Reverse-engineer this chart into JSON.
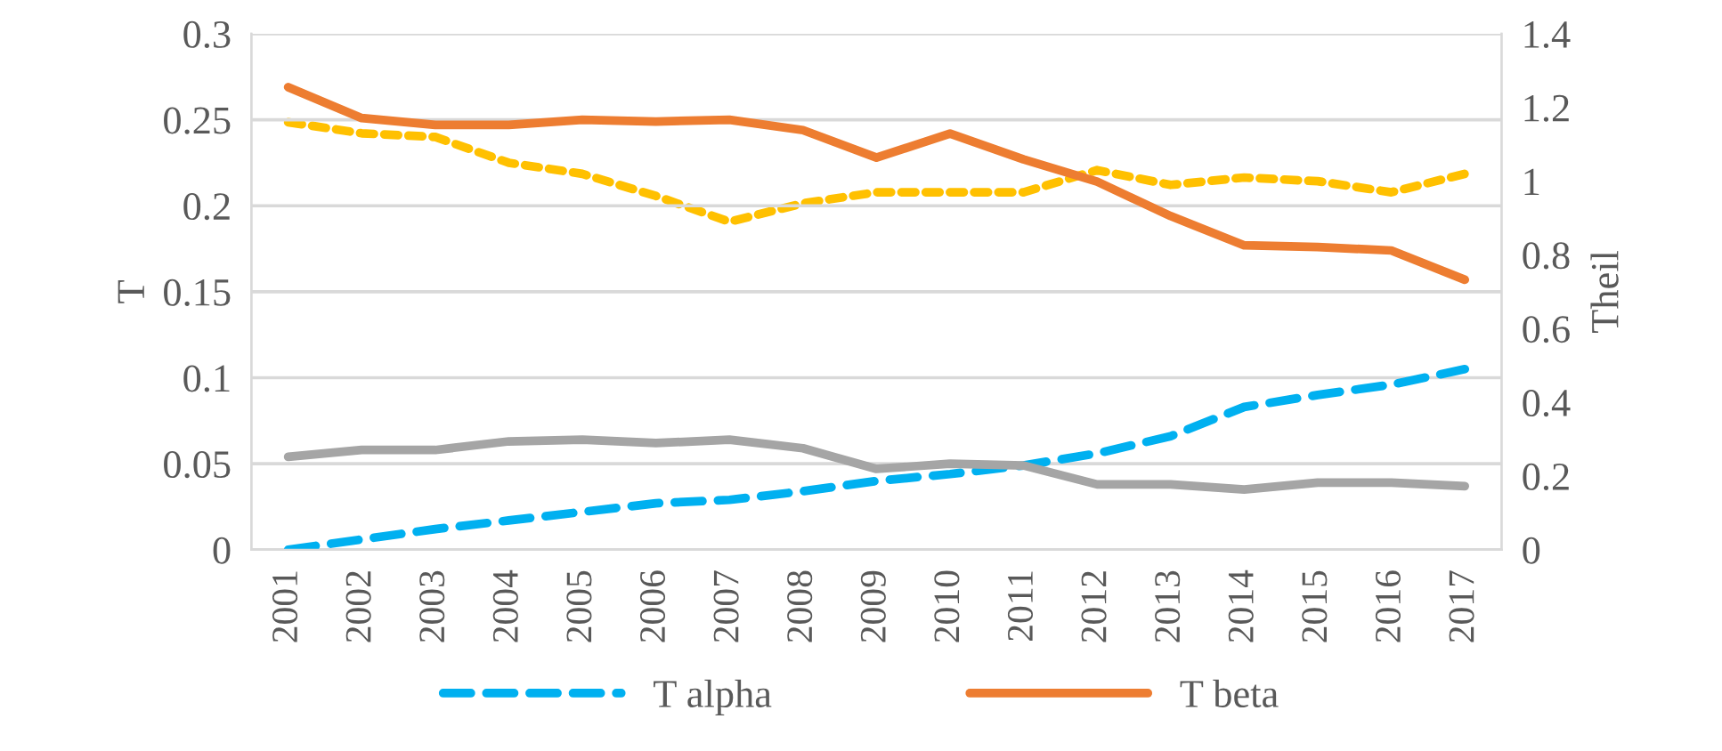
{
  "chart_data": {
    "type": "line",
    "ylabel": "T",
    "y2label": "Theil",
    "categories": [
      "2001",
      "2002",
      "2003",
      "2004",
      "2005",
      "2006",
      "2007",
      "2008",
      "2009",
      "2010",
      "2011",
      "2012",
      "2013",
      "2014",
      "2015",
      "2016",
      "2017"
    ],
    "series": [
      {
        "name": "T alpha",
        "color": "#00b0f0",
        "line_style": "dashed",
        "values": [
          0,
          0.006,
          0.012,
          0.017,
          0.022,
          0.027,
          0.029,
          0.034,
          0.04,
          0.044,
          0.049,
          0.056,
          0.066,
          0.083,
          0.09,
          0.096,
          0.105
        ]
      },
      {
        "name": "T beta",
        "color": "#ed7d31",
        "line_style": "solid",
        "values": [
          0.269,
          0.251,
          0.247,
          0.247,
          0.25,
          0.249,
          0.25,
          0.244,
          0.228,
          0.242,
          0.227,
          0.214,
          0.194,
          0.177,
          0.176,
          0.174,
          0.157
        ]
      },
      {
        "color": "#ffc000",
        "line_style": "dotted",
        "axis": "y2",
        "values": [
          1.16,
          1.13,
          1.12,
          1.05,
          1.02,
          0.96,
          0.89,
          0.94,
          0.97,
          0.97,
          0.97,
          1.03,
          0.99,
          1.01,
          1.0,
          0.97,
          1.02
        ]
      },
      {
        "color": "#a5a5a5",
        "line_style": "solid",
        "values": [
          0.054,
          0.058,
          0.058,
          0.063,
          0.064,
          0.062,
          0.064,
          0.059,
          0.047,
          0.05,
          0.049,
          0.038,
          0.038,
          0.035,
          0.039,
          0.039,
          0.037
        ]
      }
    ],
    "ylim": [
      0,
      0.3
    ],
    "yticks": [
      0,
      0.05,
      0.1,
      0.15,
      0.2,
      0.25,
      0.3
    ],
    "y2lim": [
      0,
      1.4
    ],
    "y2ticks": [
      0,
      0.2,
      0.4,
      0.6,
      0.8,
      1,
      1.2,
      1.4
    ],
    "grid": "y",
    "legend": "bottom",
    "marker": "none"
  }
}
